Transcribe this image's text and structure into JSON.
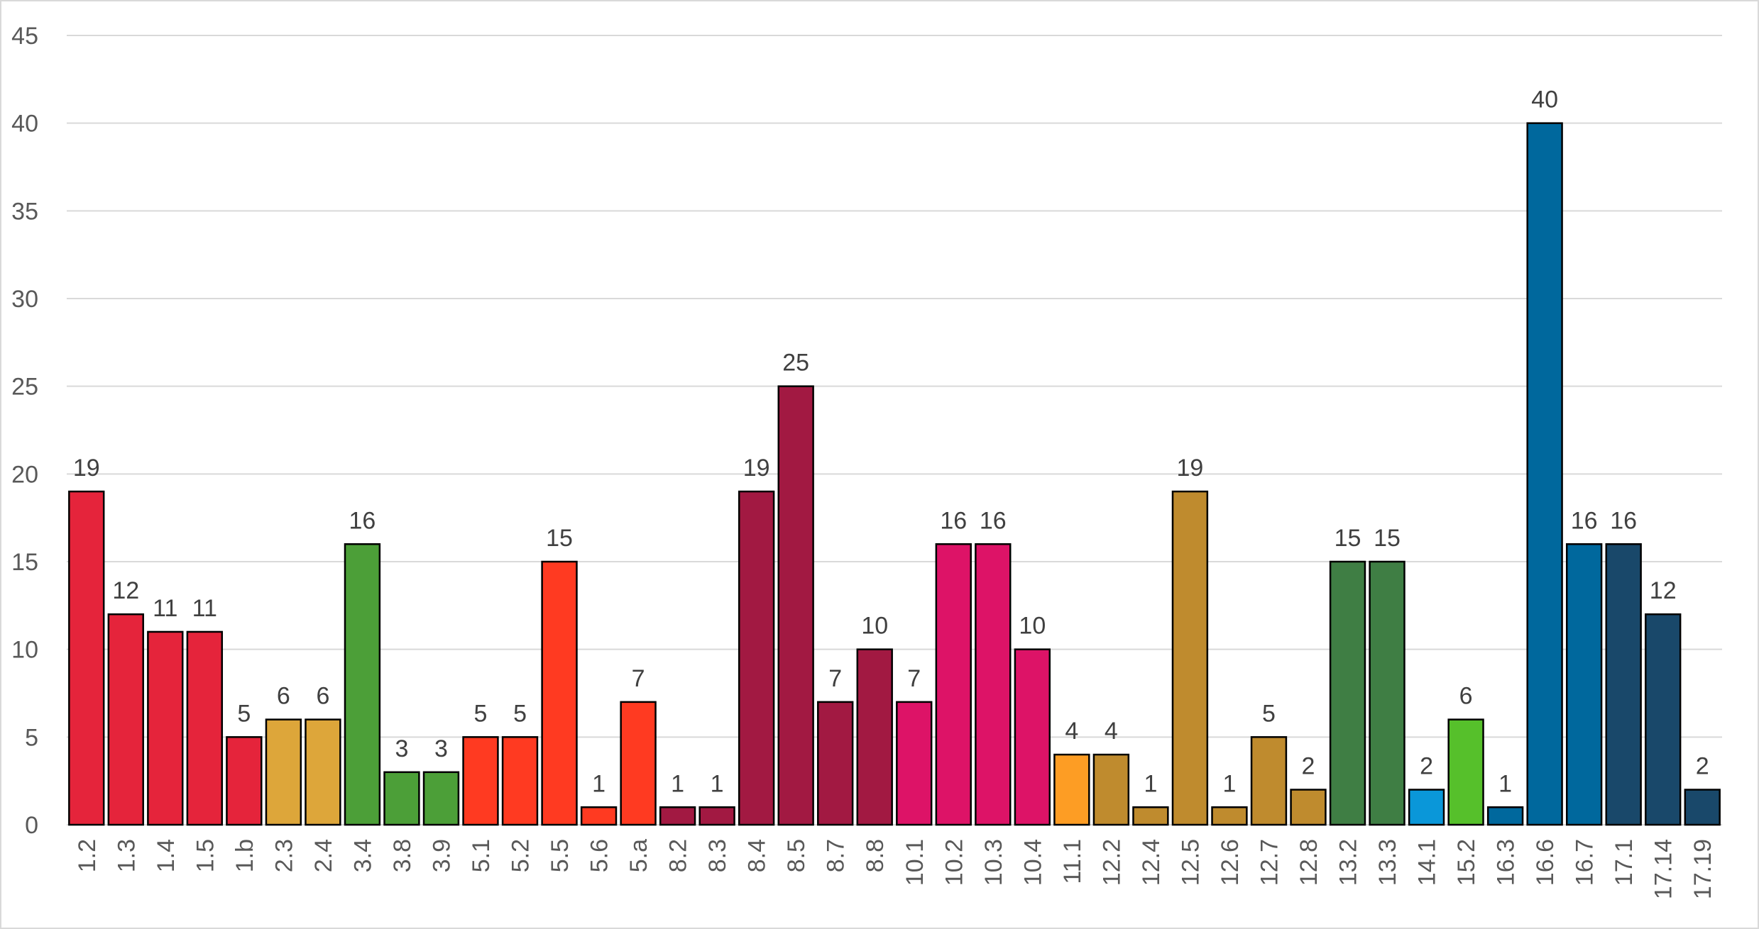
{
  "chart_data": {
    "type": "bar",
    "title": "",
    "xlabel": "",
    "ylabel": "",
    "ylim": [
      0,
      45
    ],
    "yticks": [
      0,
      5,
      10,
      15,
      20,
      25,
      30,
      35,
      40,
      45
    ],
    "grid": true,
    "data_labels": true,
    "categories": [
      "1.2",
      "1.3",
      "1.4",
      "1.5",
      "1.b",
      "2.3",
      "2.4",
      "3.4",
      "3.8",
      "3.9",
      "5.1",
      "5.2",
      "5.5",
      "5.6",
      "5.a",
      "8.2",
      "8.3",
      "8.4",
      "8.5",
      "8.7",
      "8.8",
      "10.1",
      "10.2",
      "10.3",
      "10.4",
      "11.1",
      "12.2",
      "12.4",
      "12.5",
      "12.6",
      "12.7",
      "12.8",
      "13.2",
      "13.3",
      "14.1",
      "15.2",
      "16.3",
      "16.6",
      "16.7",
      "17.1",
      "17.14",
      "17.19"
    ],
    "values": [
      19,
      12,
      11,
      11,
      5,
      6,
      6,
      16,
      3,
      3,
      5,
      5,
      15,
      1,
      7,
      1,
      1,
      19,
      25,
      7,
      10,
      7,
      16,
      16,
      10,
      4,
      4,
      1,
      19,
      1,
      5,
      2,
      15,
      15,
      2,
      6,
      1,
      40,
      16,
      16,
      12,
      2
    ],
    "colors": [
      "#e5243b",
      "#e5243b",
      "#e5243b",
      "#e5243b",
      "#e5243b",
      "#dda63a",
      "#dda63a",
      "#4c9f38",
      "#4c9f38",
      "#4c9f38",
      "#ff3a21",
      "#ff3a21",
      "#ff3a21",
      "#ff3a21",
      "#ff3a21",
      "#a21942",
      "#a21942",
      "#a21942",
      "#a21942",
      "#a21942",
      "#a21942",
      "#dd1367",
      "#dd1367",
      "#dd1367",
      "#dd1367",
      "#fd9d24",
      "#bf8b2e",
      "#bf8b2e",
      "#bf8b2e",
      "#bf8b2e",
      "#bf8b2e",
      "#bf8b2e",
      "#3f7e44",
      "#3f7e44",
      "#0a97d9",
      "#56c02b",
      "#00689d",
      "#00689d",
      "#00689d",
      "#19486a",
      "#19486a",
      "#19486a"
    ]
  }
}
